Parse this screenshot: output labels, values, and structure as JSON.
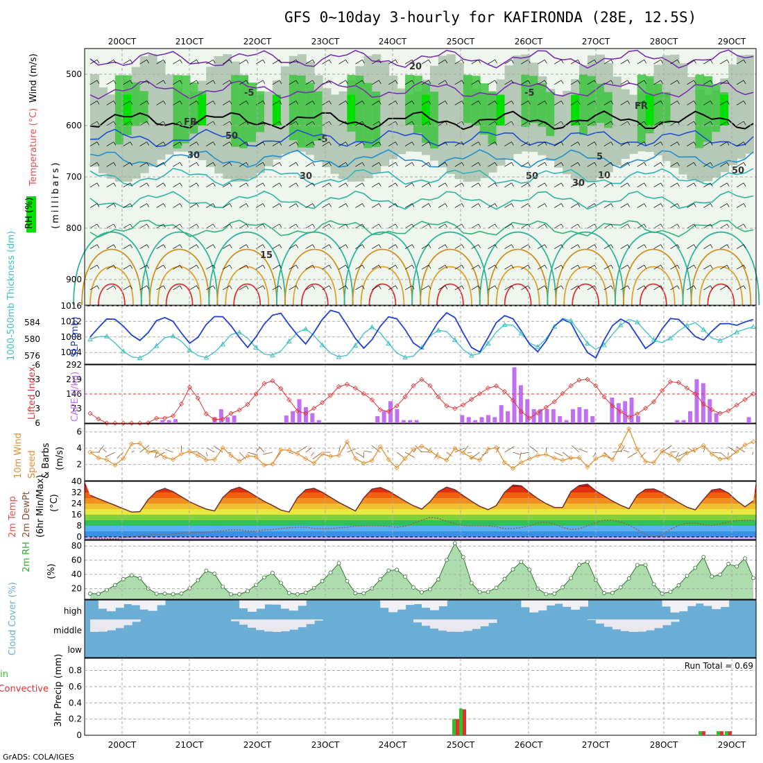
{
  "header": {
    "title": "GFS 0~10day 3-hourly for KAFIRONDA (28E, 12.5S)",
    "credit": "GrADS: COLA/IGES",
    "run_total": "Run Total = 0.69"
  },
  "colors": {
    "rh_green": "#3fc43f",
    "rh_bright": "#00e000",
    "slp": "#1f3fcf",
    "thickness": "#3fbfbf",
    "lifted": "#e03030",
    "cape": "#c070f0",
    "wind": "#e09030",
    "rh2m": "#2fae2f",
    "cloud": "#6aaed6",
    "rain": "#2fbf2f",
    "convective": "#e03030"
  },
  "chart_data": [
    {
      "panel": "upper-air",
      "type": "contour",
      "title": "GFS 0~10day 3-hourly for KAFIRONDA (28E, 12.5S)",
      "x_tick_labels": [
        "20OCT",
        "21OCT",
        "22OCT",
        "23OCT",
        "24OCT",
        "25OCT",
        "26OCT",
        "27OCT",
        "28OCT",
        "29OCT"
      ],
      "ylabel": "(millibars)",
      "y_ticks": [
        500,
        600,
        700,
        800,
        900
      ],
      "ylim": [
        450,
        950
      ],
      "legend": [
        "RH (%)",
        "Temperature (°C)",
        "Wind (m/s)"
      ],
      "annotations": [
        "-5",
        "-5",
        "FR",
        "FR",
        "-5",
        "5",
        "10",
        "15",
        "20",
        "30",
        "30",
        "30",
        "50",
        "50",
        "50"
      ]
    },
    {
      "panel": "slp-thickness",
      "type": "line",
      "ylabel_left": "1000-500mb Thickness (dm)",
      "ylabel_right": "SLP (mb)",
      "left_ticks": [
        576,
        580,
        584
      ],
      "right_ticks": [
        1004,
        1008,
        1012,
        1016
      ],
      "slp_ylim": [
        1001,
        1016
      ],
      "thickness_ylim": [
        574,
        588
      ],
      "series": [
        {
          "name": "SLP",
          "values": [
            1008,
            1010,
            1012.5,
            1013,
            1012,
            1010,
            1008,
            1007,
            1009,
            1012,
            1013,
            1013,
            1011,
            1008,
            1006,
            1008,
            1011,
            1013,
            1014,
            1012,
            1010,
            1007,
            1005,
            1008,
            1011,
            1013,
            1015,
            1013,
            1010,
            1008,
            1006,
            1009,
            1012,
            1014.5,
            1015.5,
            1013,
            1010,
            1007,
            1005,
            1007,
            1010,
            1013,
            1013.5,
            1012,
            1009,
            1006,
            1005,
            1008,
            1011,
            1014,
            1014.5,
            1012,
            1008,
            1005,
            1004,
            1007,
            1011,
            1013,
            1014,
            1012,
            1009,
            1006,
            1004,
            1006,
            1010,
            1012,
            1013,
            1011,
            1007,
            1004,
            1002,
            1006,
            1010,
            1012,
            1013,
            1011,
            1008,
            1005,
            1006,
            1009,
            1012,
            1013.5,
            1012,
            1010,
            1008,
            1007,
            1009,
            1011,
            1012,
            1011,
            1011,
            1012,
            1012.5
          ]
        },
        {
          "name": "Thickness",
          "values": [
            580,
            580.5,
            581,
            580,
            578,
            576.5,
            575.5,
            575.5,
            576.5,
            578,
            580,
            581,
            580.5,
            579,
            577,
            576,
            575.5,
            576.5,
            578,
            580,
            582,
            581.5,
            580,
            578,
            576.5,
            576,
            576.5,
            578,
            580.5,
            582,
            582.5,
            581,
            579,
            577,
            576,
            575.5,
            576.5,
            579,
            581.5,
            583,
            582,
            580,
            577.5,
            576,
            575.5,
            576,
            578,
            580.5,
            582,
            582.5,
            581,
            579,
            577,
            576,
            576.5,
            578.5,
            581,
            583,
            584,
            583,
            581,
            579,
            578,
            579.5,
            582,
            584.5,
            585.5,
            584,
            581.5,
            579,
            577.5,
            578,
            580,
            582.5,
            584,
            585,
            584,
            582,
            580,
            579,
            579.5,
            581,
            582.5,
            583.5,
            584,
            582.5,
            580.5,
            579.5,
            580,
            581,
            582,
            582.5,
            583
          ]
        }
      ]
    },
    {
      "panel": "stability",
      "type": "bar",
      "ylabel_left": "Lifted Index",
      "ylabel_right": "CAPE (J/kg)",
      "lifted_ticks": [
        -6,
        -3,
        0,
        3,
        6
      ],
      "cape_ticks": [
        73,
        146,
        219,
        292
      ],
      "cape_ylim": [
        0,
        292
      ],
      "lifted_ylim": [
        6,
        -6
      ],
      "series": [
        {
          "name": "Lifted Index",
          "values": [
            4,
            5,
            6,
            6,
            6,
            6,
            6,
            6,
            6,
            5,
            5,
            5,
            4,
            1,
            -2,
            1,
            4,
            5,
            6,
            4,
            4,
            3,
            2,
            0,
            -2,
            -3,
            -2,
            0,
            2,
            4,
            4,
            3,
            2,
            1,
            -1,
            -2,
            -2,
            -1,
            0,
            1,
            3,
            4,
            3,
            2,
            0,
            -2,
            -3,
            -2,
            0,
            2,
            3,
            3,
            2,
            1,
            0,
            -1,
            -2,
            -1,
            0,
            2,
            4,
            5,
            4,
            3,
            2,
            1,
            -1,
            -2,
            -3,
            -3,
            -2,
            0,
            2,
            3,
            4,
            5,
            4,
            3,
            2,
            0,
            -2,
            -3,
            -2,
            -1,
            0,
            2,
            3,
            4,
            4,
            3,
            2,
            1,
            0
          ]
        },
        {
          "name": "CAPE",
          "values": [
            0,
            0,
            0,
            0,
            0,
            0,
            0,
            0,
            0,
            0,
            0,
            15,
            15,
            20,
            0,
            0,
            0,
            0,
            0,
            30,
            70,
            30,
            38,
            0,
            0,
            0,
            0,
            0,
            0,
            0,
            38,
            60,
            120,
            80,
            50,
            15,
            0,
            0,
            0,
            0,
            0,
            0,
            0,
            0,
            35,
            60,
            110,
            70,
            15,
            15,
            15,
            0,
            0,
            0,
            0,
            0,
            0,
            40,
            30,
            15,
            30,
            40,
            30,
            90,
            60,
            280,
            190,
            120,
            70,
            70,
            70,
            70,
            35,
            15,
            70,
            80,
            70,
            35,
            0,
            0,
            128,
            100,
            110,
            128,
            35,
            0,
            0,
            0,
            0,
            0,
            15,
            15,
            60,
            220,
            200,
            120,
            50,
            0,
            0,
            0,
            0,
            30
          ]
        }
      ]
    },
    {
      "panel": "wind",
      "type": "line",
      "ylabel": "10m Wind Speed & Barbs (m/s)",
      "y_ticks": [
        2,
        4,
        6
      ],
      "ylim": [
        0,
        7
      ],
      "series": [
        {
          "name": "Speed",
          "values": [
            3.5,
            2.8,
            2.8,
            2.0,
            1.8,
            3.5,
            5.0,
            4.5,
            3.5,
            3.6,
            3.0,
            2.5,
            2.8,
            3.8,
            3.5,
            3.0,
            2.5,
            2.5,
            4.2,
            3.5,
            2.3,
            2.5,
            3.4,
            2.8,
            1.8,
            2.0,
            3.8,
            3.8,
            3.6,
            3.0,
            2.5,
            2.0,
            3.5,
            3.0,
            2.8,
            5.4,
            3.0,
            2.3,
            2.0,
            2.7,
            4.5,
            2.5,
            1.5,
            2.5,
            3.5,
            4.5,
            4.0,
            3.5,
            2.8,
            2.5,
            4.0,
            3.5,
            3.0,
            2.6,
            2.5,
            4.8,
            3.8,
            2.0,
            1.5,
            2.2,
            2.5,
            3.2,
            3.0,
            3.4,
            2.5,
            2.5,
            2.8,
            3.0,
            1.5,
            2.2,
            3.5,
            2.8,
            2.5,
            4.8,
            6.5,
            4.0,
            2.5,
            1.8,
            3.0,
            4.3,
            2.5,
            2.5,
            3.5,
            3.8,
            4.5,
            3.5,
            2.8,
            2.5,
            3.0,
            3.8,
            4.5,
            4.8
          ]
        }
      ]
    },
    {
      "panel": "temperature",
      "type": "area",
      "ylabel": "2m Temp / 2m DewPt (6hr Min/Max) (°C)",
      "y_ticks": [
        0,
        8,
        16,
        24,
        32,
        40
      ],
      "ylim": [
        -2,
        40
      ],
      "series": [
        {
          "name": "Temperature",
          "values": [
            30,
            28,
            26,
            24,
            22,
            20,
            18,
            16,
            24,
            30,
            34,
            35,
            33,
            30,
            27,
            24,
            22,
            20,
            17,
            26,
            32,
            35,
            36,
            33,
            30,
            27,
            24,
            22,
            19,
            17,
            26,
            33,
            35,
            35,
            32,
            29,
            26,
            23,
            21,
            18,
            28,
            34,
            36,
            35,
            32,
            29,
            26,
            23,
            21,
            19,
            28,
            33,
            36,
            35,
            32,
            28,
            25,
            22,
            20,
            18,
            29,
            34,
            38,
            37,
            33,
            29,
            26,
            23,
            21,
            20,
            31,
            36,
            38,
            38,
            33,
            30,
            27,
            24,
            22,
            20,
            30,
            34,
            35,
            34,
            31,
            28,
            25,
            22,
            20,
            19,
            30,
            34,
            35,
            33,
            29,
            24,
            21,
            26
          ]
        },
        {
          "name": "DewPoint",
          "values": [
            -1,
            -1,
            -1,
            -2,
            -1,
            0,
            0,
            1,
            1,
            2,
            2,
            2,
            2,
            3,
            3,
            3,
            3,
            4,
            4,
            5,
            5,
            5,
            4,
            4,
            5,
            5,
            6,
            6,
            7,
            7,
            7,
            6,
            6,
            6,
            6,
            7,
            7,
            8,
            8,
            8,
            8,
            8,
            7,
            7,
            8,
            10,
            12,
            14,
            14,
            12,
            10,
            9,
            8,
            8,
            8,
            8,
            8,
            6,
            6,
            6,
            7,
            8,
            10,
            11,
            10,
            8,
            6,
            5,
            6,
            8,
            10,
            12,
            12,
            12,
            10,
            8,
            5,
            2,
            0,
            0,
            4,
            7,
            9,
            10,
            10,
            9,
            8,
            9,
            10,
            11,
            12,
            12,
            12
          ]
        }
      ]
    },
    {
      "panel": "rh",
      "type": "area",
      "ylabel": "2m RH (%)",
      "y_ticks": [
        20,
        40,
        60,
        80
      ],
      "ylim": [
        5,
        88
      ],
      "series": [
        {
          "name": "RH",
          "values": [
            13,
            12,
            14,
            20,
            25,
            32,
            36,
            40,
            35,
            23,
            15,
            12,
            13,
            13,
            11,
            14,
            20,
            28,
            38,
            48,
            42,
            28,
            15,
            11,
            12,
            14,
            20,
            27,
            35,
            45,
            38,
            25,
            14,
            12,
            12,
            15,
            20,
            28,
            34,
            45,
            58,
            40,
            20,
            12,
            13,
            16,
            25,
            35,
            45,
            48,
            45,
            35,
            23,
            15,
            15,
            20,
            30,
            48,
            72,
            86,
            70,
            40,
            17,
            15,
            15,
            17,
            25,
            35,
            45,
            55,
            60,
            45,
            22,
            13,
            12,
            13,
            20,
            28,
            40,
            55,
            62,
            45,
            23,
            13,
            13,
            17,
            25,
            35,
            50,
            62,
            48,
            25,
            13,
            13,
            17,
            25,
            35,
            45,
            52,
            65,
            40,
            30,
            45,
            55,
            48,
            58,
            65,
            35
          ]
        }
      ]
    },
    {
      "panel": "cloud",
      "type": "heatmap",
      "ylabel": "Cloud Cover (%)",
      "levels": [
        "high",
        "middle",
        "low"
      ]
    },
    {
      "panel": "precip",
      "type": "bar",
      "ylabel_left": "Total / Rain",
      "ylabel_right": "Convective",
      "ylabel": "3hr Precip (mm)",
      "y_ticks": [
        0,
        0.2,
        0.4,
        0.6,
        0.8
      ],
      "ylim": [
        0,
        0.95
      ],
      "x_tick_labels": [
        "20OCT",
        "21OCT",
        "22OCT",
        "23OCT",
        "24OCT",
        "25OCT",
        "26OCT",
        "27OCT",
        "28OCT",
        "29OCT"
      ],
      "run_total": 0.69,
      "series": [
        {
          "name": "Total",
          "values": [
            0.2,
            0.33,
            0.05,
            0.05,
            0.05
          ]
        },
        {
          "name": "Convective",
          "values": [
            0.2,
            0.32,
            0.05,
            0.05,
            0.05
          ]
        }
      ],
      "bar_time_index": [
        49,
        50,
        87,
        89,
        90
      ]
    }
  ]
}
